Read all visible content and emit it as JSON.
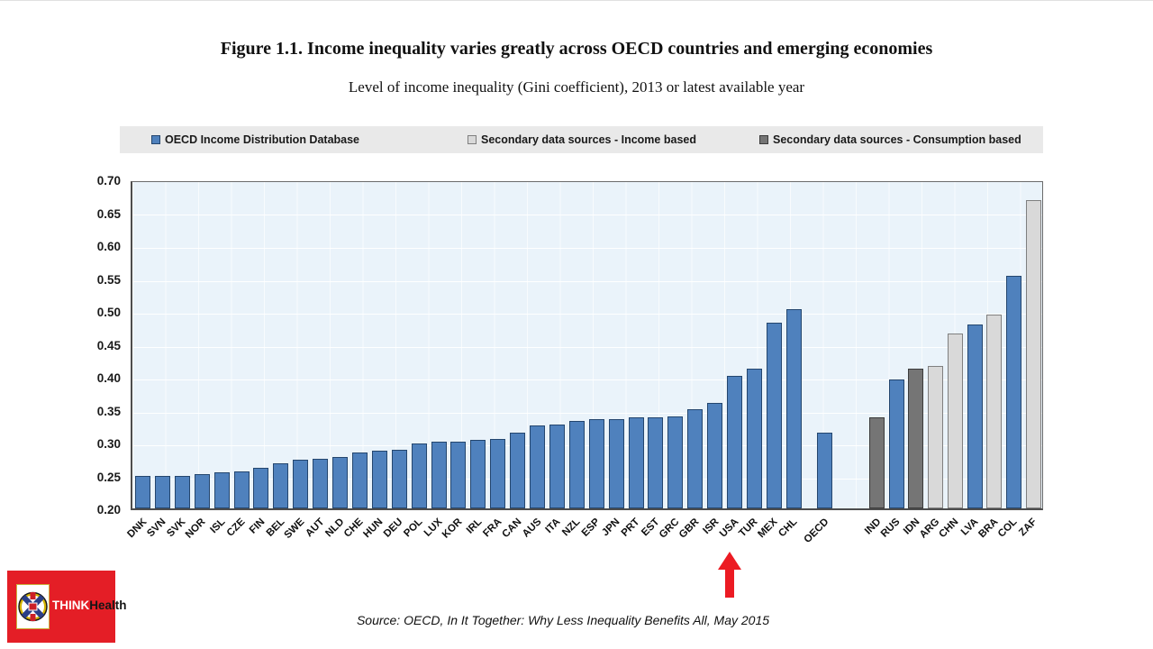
{
  "title": "Figure 1.1. Income inequality varies greatly across OECD countries and emerging economies",
  "subtitle": "Level of income inequality (Gini coefficient), 2013 or latest available year",
  "legend": [
    {
      "key": "oecd_idd",
      "label": "OECD Income Distribution Database",
      "color": "#4f81bd",
      "border": "#24466e"
    },
    {
      "key": "secondary_income",
      "label": "Secondary data sources - Income based",
      "color": "#d9d9d9",
      "border": "#7f7f7f"
    },
    {
      "key": "secondary_consumption",
      "label": "Secondary data sources - Consumption based",
      "color": "#757575",
      "border": "#3b3b3b"
    }
  ],
  "chart_data": {
    "type": "bar",
    "title": "Level of income inequality (Gini coefficient), 2013 or latest available year",
    "ylabel": "Gini coefficient",
    "ylim": [
      0.2,
      0.7
    ],
    "ytick_step": 0.05,
    "grid": true,
    "plot_bg": "#eaf3fa",
    "bars": [
      {
        "label": "DNK",
        "value": 0.249,
        "series": "oecd_idd"
      },
      {
        "label": "SVN",
        "value": 0.25,
        "series": "oecd_idd"
      },
      {
        "label": "SVK",
        "value": 0.25,
        "series": "oecd_idd"
      },
      {
        "label": "NOR",
        "value": 0.252,
        "series": "oecd_idd"
      },
      {
        "label": "ISL",
        "value": 0.255,
        "series": "oecd_idd"
      },
      {
        "label": "CZE",
        "value": 0.256,
        "series": "oecd_idd"
      },
      {
        "label": "FIN",
        "value": 0.262,
        "series": "oecd_idd"
      },
      {
        "label": "BEL",
        "value": 0.268,
        "series": "oecd_idd"
      },
      {
        "label": "SWE",
        "value": 0.274,
        "series": "oecd_idd"
      },
      {
        "label": "AUT",
        "value": 0.276,
        "series": "oecd_idd"
      },
      {
        "label": "NLD",
        "value": 0.278,
        "series": "oecd_idd"
      },
      {
        "label": "CHE",
        "value": 0.285,
        "series": "oecd_idd"
      },
      {
        "label": "HUN",
        "value": 0.288,
        "series": "oecd_idd"
      },
      {
        "label": "DEU",
        "value": 0.289,
        "series": "oecd_idd"
      },
      {
        "label": "POL",
        "value": 0.299,
        "series": "oecd_idd"
      },
      {
        "label": "LUX",
        "value": 0.302,
        "series": "oecd_idd"
      },
      {
        "label": "KOR",
        "value": 0.302,
        "series": "oecd_idd"
      },
      {
        "label": "IRL",
        "value": 0.304,
        "series": "oecd_idd"
      },
      {
        "label": "FRA",
        "value": 0.306,
        "series": "oecd_idd"
      },
      {
        "label": "CAN",
        "value": 0.315,
        "series": "oecd_idd"
      },
      {
        "label": "AUS",
        "value": 0.326,
        "series": "oecd_idd"
      },
      {
        "label": "ITA",
        "value": 0.327,
        "series": "oecd_idd"
      },
      {
        "label": "NZL",
        "value": 0.333,
        "series": "oecd_idd"
      },
      {
        "label": "ESP",
        "value": 0.335,
        "series": "oecd_idd"
      },
      {
        "label": "JPN",
        "value": 0.336,
        "series": "oecd_idd"
      },
      {
        "label": "PRT",
        "value": 0.338,
        "series": "oecd_idd"
      },
      {
        "label": "EST",
        "value": 0.339,
        "series": "oecd_idd"
      },
      {
        "label": "GRC",
        "value": 0.34,
        "series": "oecd_idd"
      },
      {
        "label": "GBR",
        "value": 0.351,
        "series": "oecd_idd"
      },
      {
        "label": "ISR",
        "value": 0.36,
        "series": "oecd_idd"
      },
      {
        "label": "USA",
        "value": 0.401,
        "series": "oecd_idd"
      },
      {
        "label": "TUR",
        "value": 0.412,
        "series": "oecd_idd"
      },
      {
        "label": "MEX",
        "value": 0.482,
        "series": "oecd_idd"
      },
      {
        "label": "CHL",
        "value": 0.503,
        "series": "oecd_idd"
      },
      {
        "label": "OECD",
        "value": 0.315,
        "series": "oecd_idd"
      },
      {
        "label": "IND",
        "value": 0.339,
        "series": "secondary_consumption"
      },
      {
        "label": "RUS",
        "value": 0.396,
        "series": "oecd_idd"
      },
      {
        "label": "IDN",
        "value": 0.413,
        "series": "secondary_consumption"
      },
      {
        "label": "ARG",
        "value": 0.417,
        "series": "secondary_income"
      },
      {
        "label": "CHN",
        "value": 0.466,
        "series": "secondary_income"
      },
      {
        "label": "LVA",
        "value": 0.479,
        "series": "oecd_idd"
      },
      {
        "label": "BRA",
        "value": 0.495,
        "series": "secondary_income"
      },
      {
        "label": "COL",
        "value": 0.554,
        "series": "oecd_idd"
      },
      {
        "label": "ZAF",
        "value": 0.669,
        "series": "secondary_income"
      }
    ],
    "annotation": {
      "type": "arrow-up",
      "target": "USA",
      "color": "#ec1b23"
    }
  },
  "source": "Source: OECD, In It Together: Why Less Inequality Benefits All, May 2015",
  "logo": {
    "think": "THINK",
    "health": "Health",
    "bg_color": "#e41e26"
  }
}
